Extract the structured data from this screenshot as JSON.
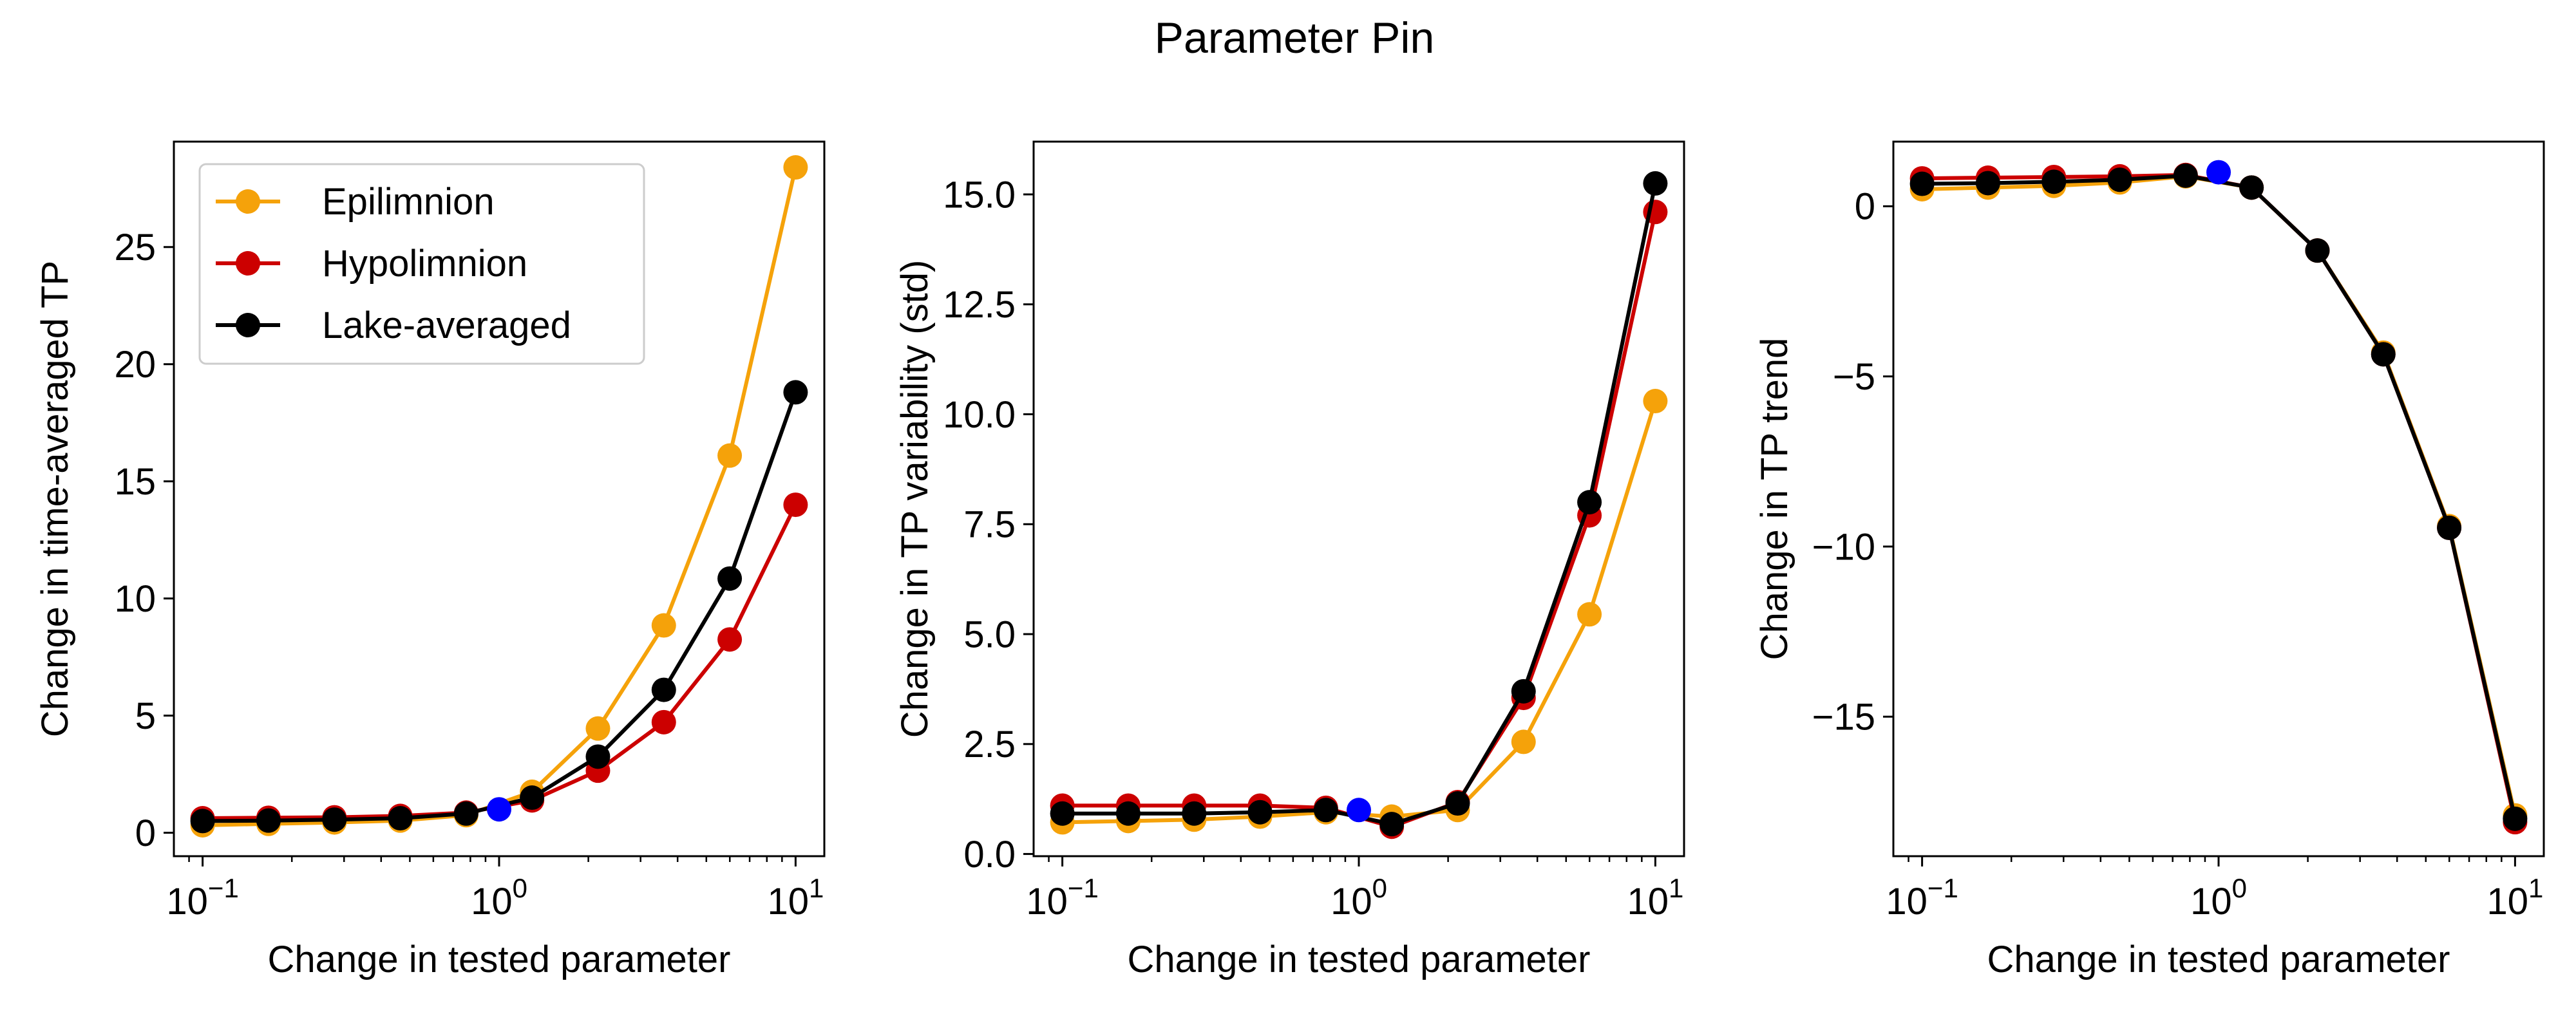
{
  "figure": {
    "title": "Parameter Pin"
  },
  "colors": {
    "epi": "#f5a20a",
    "hypo": "#cc0000",
    "lake": "#000000",
    "baseline": "#0000ff"
  },
  "chart_data": [
    {
      "type": "line",
      "xscale": "log",
      "xlim": [
        0.08,
        12.5
      ],
      "ylim": [
        -1.0,
        29.5
      ],
      "xlabel": "Change in tested parameter",
      "ylabel": "Change in time-averaged TP",
      "xticks": [
        {
          "v": 0.1,
          "base": "10",
          "exp": "−1"
        },
        {
          "v": 1,
          "base": "10",
          "exp": "0"
        },
        {
          "v": 10,
          "base": "10",
          "exp": "1"
        }
      ],
      "yticks": [
        {
          "v": 0,
          "label": "0"
        },
        {
          "v": 5,
          "label": "5"
        },
        {
          "v": 10,
          "label": "10"
        },
        {
          "v": 15,
          "label": "15"
        },
        {
          "v": 20,
          "label": "20"
        },
        {
          "v": 25,
          "label": "25"
        }
      ],
      "legend": {
        "position": "upper-left",
        "entries": [
          "Epilimnion",
          "Hypolimnion",
          "Lake-averaged"
        ]
      },
      "x": [
        0.1,
        0.1668,
        0.2783,
        0.4642,
        0.7743,
        1.2915,
        2.1544,
        3.5938,
        5.9948,
        10
      ],
      "baseline_point": {
        "x": 1,
        "y": 1.0
      },
      "series": [
        {
          "name": "Epilimnion",
          "color_key": "epi",
          "values": [
            0.32,
            0.38,
            0.44,
            0.52,
            0.75,
            1.75,
            4.45,
            8.85,
            16.1,
            28.4
          ]
        },
        {
          "name": "Hypolimnion",
          "color_key": "hypo",
          "values": [
            0.62,
            0.64,
            0.66,
            0.72,
            0.86,
            1.38,
            2.65,
            4.72,
            8.25,
            14.0
          ]
        },
        {
          "name": "Lake-averaged",
          "color_key": "lake",
          "values": [
            0.5,
            0.52,
            0.56,
            0.62,
            0.82,
            1.5,
            3.25,
            6.1,
            10.85,
            18.8
          ]
        }
      ]
    },
    {
      "type": "line",
      "xscale": "log",
      "xlim": [
        0.08,
        12.5
      ],
      "ylim": [
        -0.05,
        16.2
      ],
      "xlabel": "Change in tested parameter",
      "ylabel": "Change in TP variability (std)",
      "xticks": [
        {
          "v": 0.1,
          "base": "10",
          "exp": "−1"
        },
        {
          "v": 1,
          "base": "10",
          "exp": "0"
        },
        {
          "v": 10,
          "base": "10",
          "exp": "1"
        }
      ],
      "yticks": [
        {
          "v": 0,
          "label": "0.0"
        },
        {
          "v": 2.5,
          "label": "2.5"
        },
        {
          "v": 5,
          "label": "5.0"
        },
        {
          "v": 7.5,
          "label": "7.5"
        },
        {
          "v": 10,
          "label": "10.0"
        },
        {
          "v": 12.5,
          "label": "12.5"
        },
        {
          "v": 15,
          "label": "15.0"
        }
      ],
      "x": [
        0.1,
        0.1668,
        0.2783,
        0.4642,
        0.7743,
        1.2915,
        2.1544,
        3.5938,
        5.9948,
        10
      ],
      "baseline_point": {
        "x": 1,
        "y": 1.0
      },
      "series": [
        {
          "name": "Epilimnion",
          "color_key": "epi",
          "values": [
            0.72,
            0.75,
            0.78,
            0.85,
            0.95,
            0.85,
            1.0,
            2.55,
            5.45,
            10.3
          ]
        },
        {
          "name": "Hypolimnion",
          "color_key": "hypo",
          "values": [
            1.1,
            1.1,
            1.1,
            1.1,
            1.05,
            0.62,
            1.18,
            3.55,
            7.7,
            14.6
          ]
        },
        {
          "name": "Lake-averaged",
          "color_key": "lake",
          "values": [
            0.92,
            0.92,
            0.92,
            0.95,
            1.0,
            0.68,
            1.15,
            3.7,
            8.0,
            15.25
          ]
        }
      ]
    },
    {
      "type": "line",
      "xscale": "log",
      "xlim": [
        0.08,
        12.5
      ],
      "ylim": [
        -19.1,
        1.9
      ],
      "xlabel": "Change in tested parameter",
      "ylabel": "Change in TP trend",
      "xticks": [
        {
          "v": 0.1,
          "base": "10",
          "exp": "−1"
        },
        {
          "v": 1,
          "base": "10",
          "exp": "0"
        },
        {
          "v": 10,
          "base": "10",
          "exp": "1"
        }
      ],
      "yticks": [
        {
          "v": 0,
          "label": "0"
        },
        {
          "v": -5,
          "label": "−5"
        },
        {
          "v": -10,
          "label": "−10"
        },
        {
          "v": -15,
          "label": "−15"
        }
      ],
      "x": [
        0.1,
        0.1668,
        0.2783,
        0.4642,
        0.7743,
        1.2915,
        2.1544,
        3.5938,
        5.9948,
        10
      ],
      "baseline_point": {
        "x": 1,
        "y": 1.0
      },
      "series": [
        {
          "name": "Epilimnion",
          "color_key": "epi",
          "values": [
            0.5,
            0.55,
            0.6,
            0.7,
            0.88,
            0.55,
            -1.3,
            -4.3,
            -9.4,
            -17.9
          ]
        },
        {
          "name": "Hypolimnion",
          "color_key": "hypo",
          "values": [
            0.82,
            0.84,
            0.86,
            0.88,
            0.92,
            0.55,
            -1.3,
            -4.35,
            -9.45,
            -18.1
          ]
        },
        {
          "name": "Lake-averaged",
          "color_key": "lake",
          "values": [
            0.66,
            0.68,
            0.72,
            0.78,
            0.9,
            0.55,
            -1.3,
            -4.35,
            -9.45,
            -18.0
          ]
        }
      ]
    }
  ]
}
